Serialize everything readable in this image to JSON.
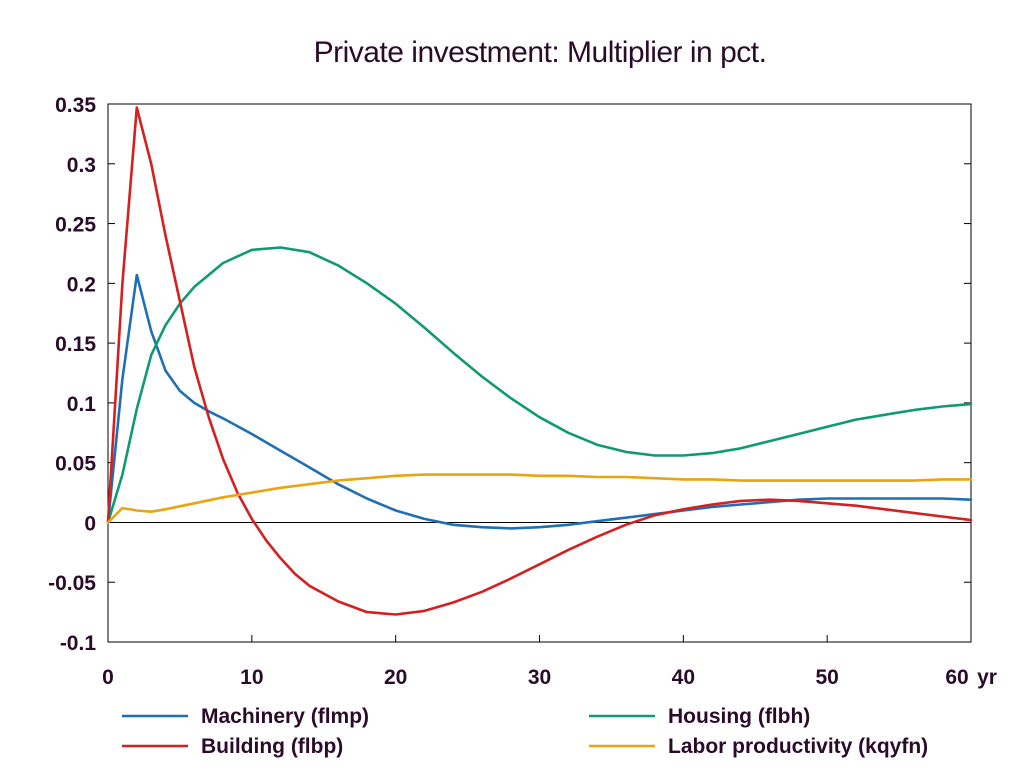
{
  "chart_data": {
    "type": "line",
    "title": "Private investment: Multiplier in pct.",
    "xlabel": "",
    "ylabel": "",
    "x_unit_label": "yr",
    "xlim": [
      0,
      60
    ],
    "ylim": [
      -0.1,
      0.35
    ],
    "x_ticks": [
      0,
      10,
      20,
      30,
      40,
      50,
      60
    ],
    "x_tick_labels": [
      "0",
      "10",
      "20",
      "30",
      "40",
      "50",
      "60"
    ],
    "y_ticks": [
      -0.1,
      -0.05,
      0,
      0.05,
      0.1,
      0.15,
      0.2,
      0.25,
      0.3,
      0.35
    ],
    "y_tick_labels": [
      "-0.1",
      "-0.05",
      "0",
      "0.05",
      "0.1",
      "0.15",
      "0.2",
      "0.25",
      "0.3",
      "0.35"
    ],
    "zero_line": true,
    "grid": false,
    "legend_position": "bottom",
    "series": [
      {
        "name": "Machinery (flmp)",
        "color": "#1f6fb5",
        "x": [
          0,
          1,
          2,
          3,
          4,
          5,
          6,
          7,
          8,
          10,
          12,
          14,
          16,
          18,
          20,
          22,
          24,
          26,
          28,
          30,
          32,
          34,
          36,
          38,
          40,
          42,
          44,
          46,
          48,
          50,
          52,
          54,
          56,
          58,
          60
        ],
        "y": [
          0,
          0.12,
          0.207,
          0.16,
          0.127,
          0.11,
          0.1,
          0.093,
          0.087,
          0.074,
          0.06,
          0.046,
          0.032,
          0.02,
          0.01,
          0.003,
          -0.002,
          -0.004,
          -0.005,
          -0.004,
          -0.002,
          0.001,
          0.004,
          0.007,
          0.01,
          0.013,
          0.015,
          0.017,
          0.019,
          0.02,
          0.02,
          0.02,
          0.02,
          0.02,
          0.019
        ]
      },
      {
        "name": "Housing (flbh)",
        "color": "#0f9a72",
        "x": [
          0,
          1,
          2,
          3,
          4,
          5,
          6,
          8,
          10,
          12,
          14,
          16,
          18,
          20,
          22,
          24,
          26,
          28,
          30,
          32,
          34,
          36,
          38,
          40,
          42,
          44,
          46,
          48,
          50,
          52,
          54,
          56,
          58,
          60
        ],
        "y": [
          0,
          0.04,
          0.095,
          0.14,
          0.165,
          0.183,
          0.197,
          0.217,
          0.228,
          0.23,
          0.226,
          0.215,
          0.2,
          0.183,
          0.163,
          0.142,
          0.122,
          0.104,
          0.088,
          0.075,
          0.065,
          0.059,
          0.056,
          0.056,
          0.058,
          0.062,
          0.068,
          0.074,
          0.08,
          0.086,
          0.09,
          0.094,
          0.097,
          0.099
        ]
      },
      {
        "name": "Building (flbp)",
        "color": "#d42020",
        "x": [
          0,
          1,
          2,
          3,
          4,
          5,
          6,
          7,
          8,
          9,
          10,
          11,
          12,
          13,
          14,
          16,
          18,
          20,
          22,
          24,
          26,
          28,
          30,
          32,
          34,
          36,
          38,
          40,
          42,
          44,
          46,
          48,
          50,
          52,
          54,
          56,
          58,
          60
        ],
        "y": [
          0,
          0.2,
          0.347,
          0.3,
          0.24,
          0.185,
          0.13,
          0.088,
          0.053,
          0.025,
          0.003,
          -0.015,
          -0.03,
          -0.043,
          -0.053,
          -0.066,
          -0.075,
          -0.077,
          -0.074,
          -0.067,
          -0.058,
          -0.047,
          -0.035,
          -0.023,
          -0.012,
          -0.002,
          0.006,
          0.011,
          0.015,
          0.018,
          0.019,
          0.018,
          0.016,
          0.014,
          0.011,
          0.008,
          0.005,
          0.002
        ]
      },
      {
        "name": "Labor productivity (kqyfn)",
        "color": "#e7a413",
        "x": [
          0,
          1,
          2,
          3,
          4,
          6,
          8,
          10,
          12,
          14,
          16,
          18,
          20,
          22,
          24,
          26,
          28,
          30,
          32,
          34,
          36,
          38,
          40,
          42,
          44,
          46,
          48,
          50,
          52,
          54,
          56,
          58,
          60
        ],
        "y": [
          0,
          0.012,
          0.01,
          0.009,
          0.011,
          0.016,
          0.021,
          0.025,
          0.029,
          0.032,
          0.035,
          0.037,
          0.039,
          0.04,
          0.04,
          0.04,
          0.04,
          0.039,
          0.039,
          0.038,
          0.038,
          0.037,
          0.036,
          0.036,
          0.035,
          0.035,
          0.035,
          0.035,
          0.035,
          0.035,
          0.035,
          0.036,
          0.036
        ]
      }
    ]
  }
}
